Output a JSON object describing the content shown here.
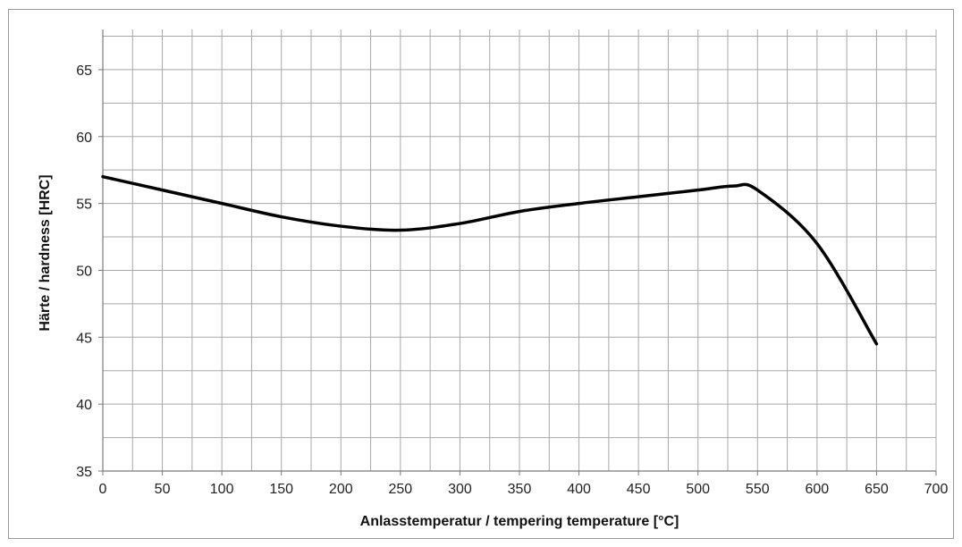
{
  "chart_data": {
    "type": "line",
    "title": "",
    "xlabel": "Anlasstemperatur / tempering temperature [°C]",
    "ylabel": "Härte / hardness [HRC]",
    "xlim": [
      0,
      700
    ],
    "ylim": [
      35,
      68
    ],
    "x_ticks": [
      0,
      50,
      100,
      150,
      200,
      250,
      300,
      350,
      400,
      450,
      500,
      550,
      600,
      650,
      700
    ],
    "y_ticks": [
      35,
      40,
      45,
      50,
      55,
      60,
      65
    ],
    "grid": true,
    "x_minor_step": 25,
    "y_minor_step": 2.5,
    "series": [
      {
        "color": "#000000",
        "x": [
          0,
          50,
          100,
          150,
          200,
          250,
          300,
          350,
          400,
          450,
          500,
          530,
          550,
          600,
          650
        ],
        "y": [
          57,
          56,
          55,
          54,
          53.3,
          53,
          53.5,
          54.4,
          55,
          55.5,
          56,
          56.3,
          56,
          52,
          44.5
        ]
      }
    ]
  }
}
